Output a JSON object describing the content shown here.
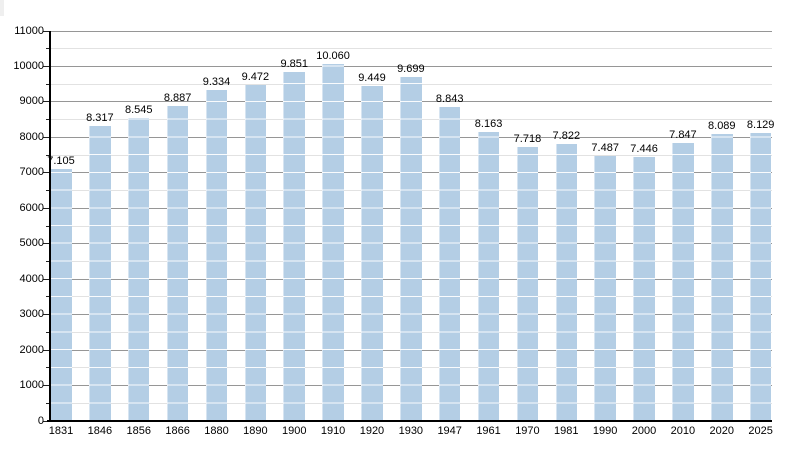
{
  "chart_data": {
    "type": "bar",
    "title": "",
    "xlabel": "",
    "ylabel": "",
    "categories": [
      "1831",
      "1846",
      "1856",
      "1866",
      "1880",
      "1890",
      "1900",
      "1910",
      "1920",
      "1930",
      "1947",
      "1961",
      "1970",
      "1981",
      "1990",
      "2000",
      "2010",
      "2020",
      "2025"
    ],
    "values": [
      7105,
      8317,
      8545,
      8887,
      9334,
      9472,
      9851,
      10060,
      9449,
      9699,
      8843,
      8163,
      7718,
      7822,
      7487,
      7446,
      7847,
      8089,
      8129
    ],
    "value_labels": [
      "7.105",
      "8.317",
      "8.545",
      "8.887",
      "9.334",
      "9.472",
      "9.851",
      "10.060",
      "9.449",
      "9.699",
      "8.843",
      "8.163",
      "7.718",
      "7.822",
      "7.487",
      "7.446",
      "7.847",
      "8.089",
      "8.129"
    ],
    "ylim": [
      0,
      11000
    ],
    "ytick_major_step": 1000,
    "ytick_minor_step": 500,
    "ytick_labels": [
      "0",
      "1000",
      "2000",
      "3000",
      "4000",
      "5000",
      "6000",
      "7000",
      "8000",
      "9000",
      "10000",
      "11000"
    ],
    "grid": "horizontal major+minor, on",
    "legend": "none",
    "colors": {
      "bar_fill": "#b4cee5",
      "bar_gridline_overlay": "rgba(255,255,255,0.92)",
      "grid_major": "#969696",
      "grid_minor": "#e2e2e2",
      "axis": "#000000",
      "text": "#000000",
      "background": "#ffffff"
    }
  }
}
